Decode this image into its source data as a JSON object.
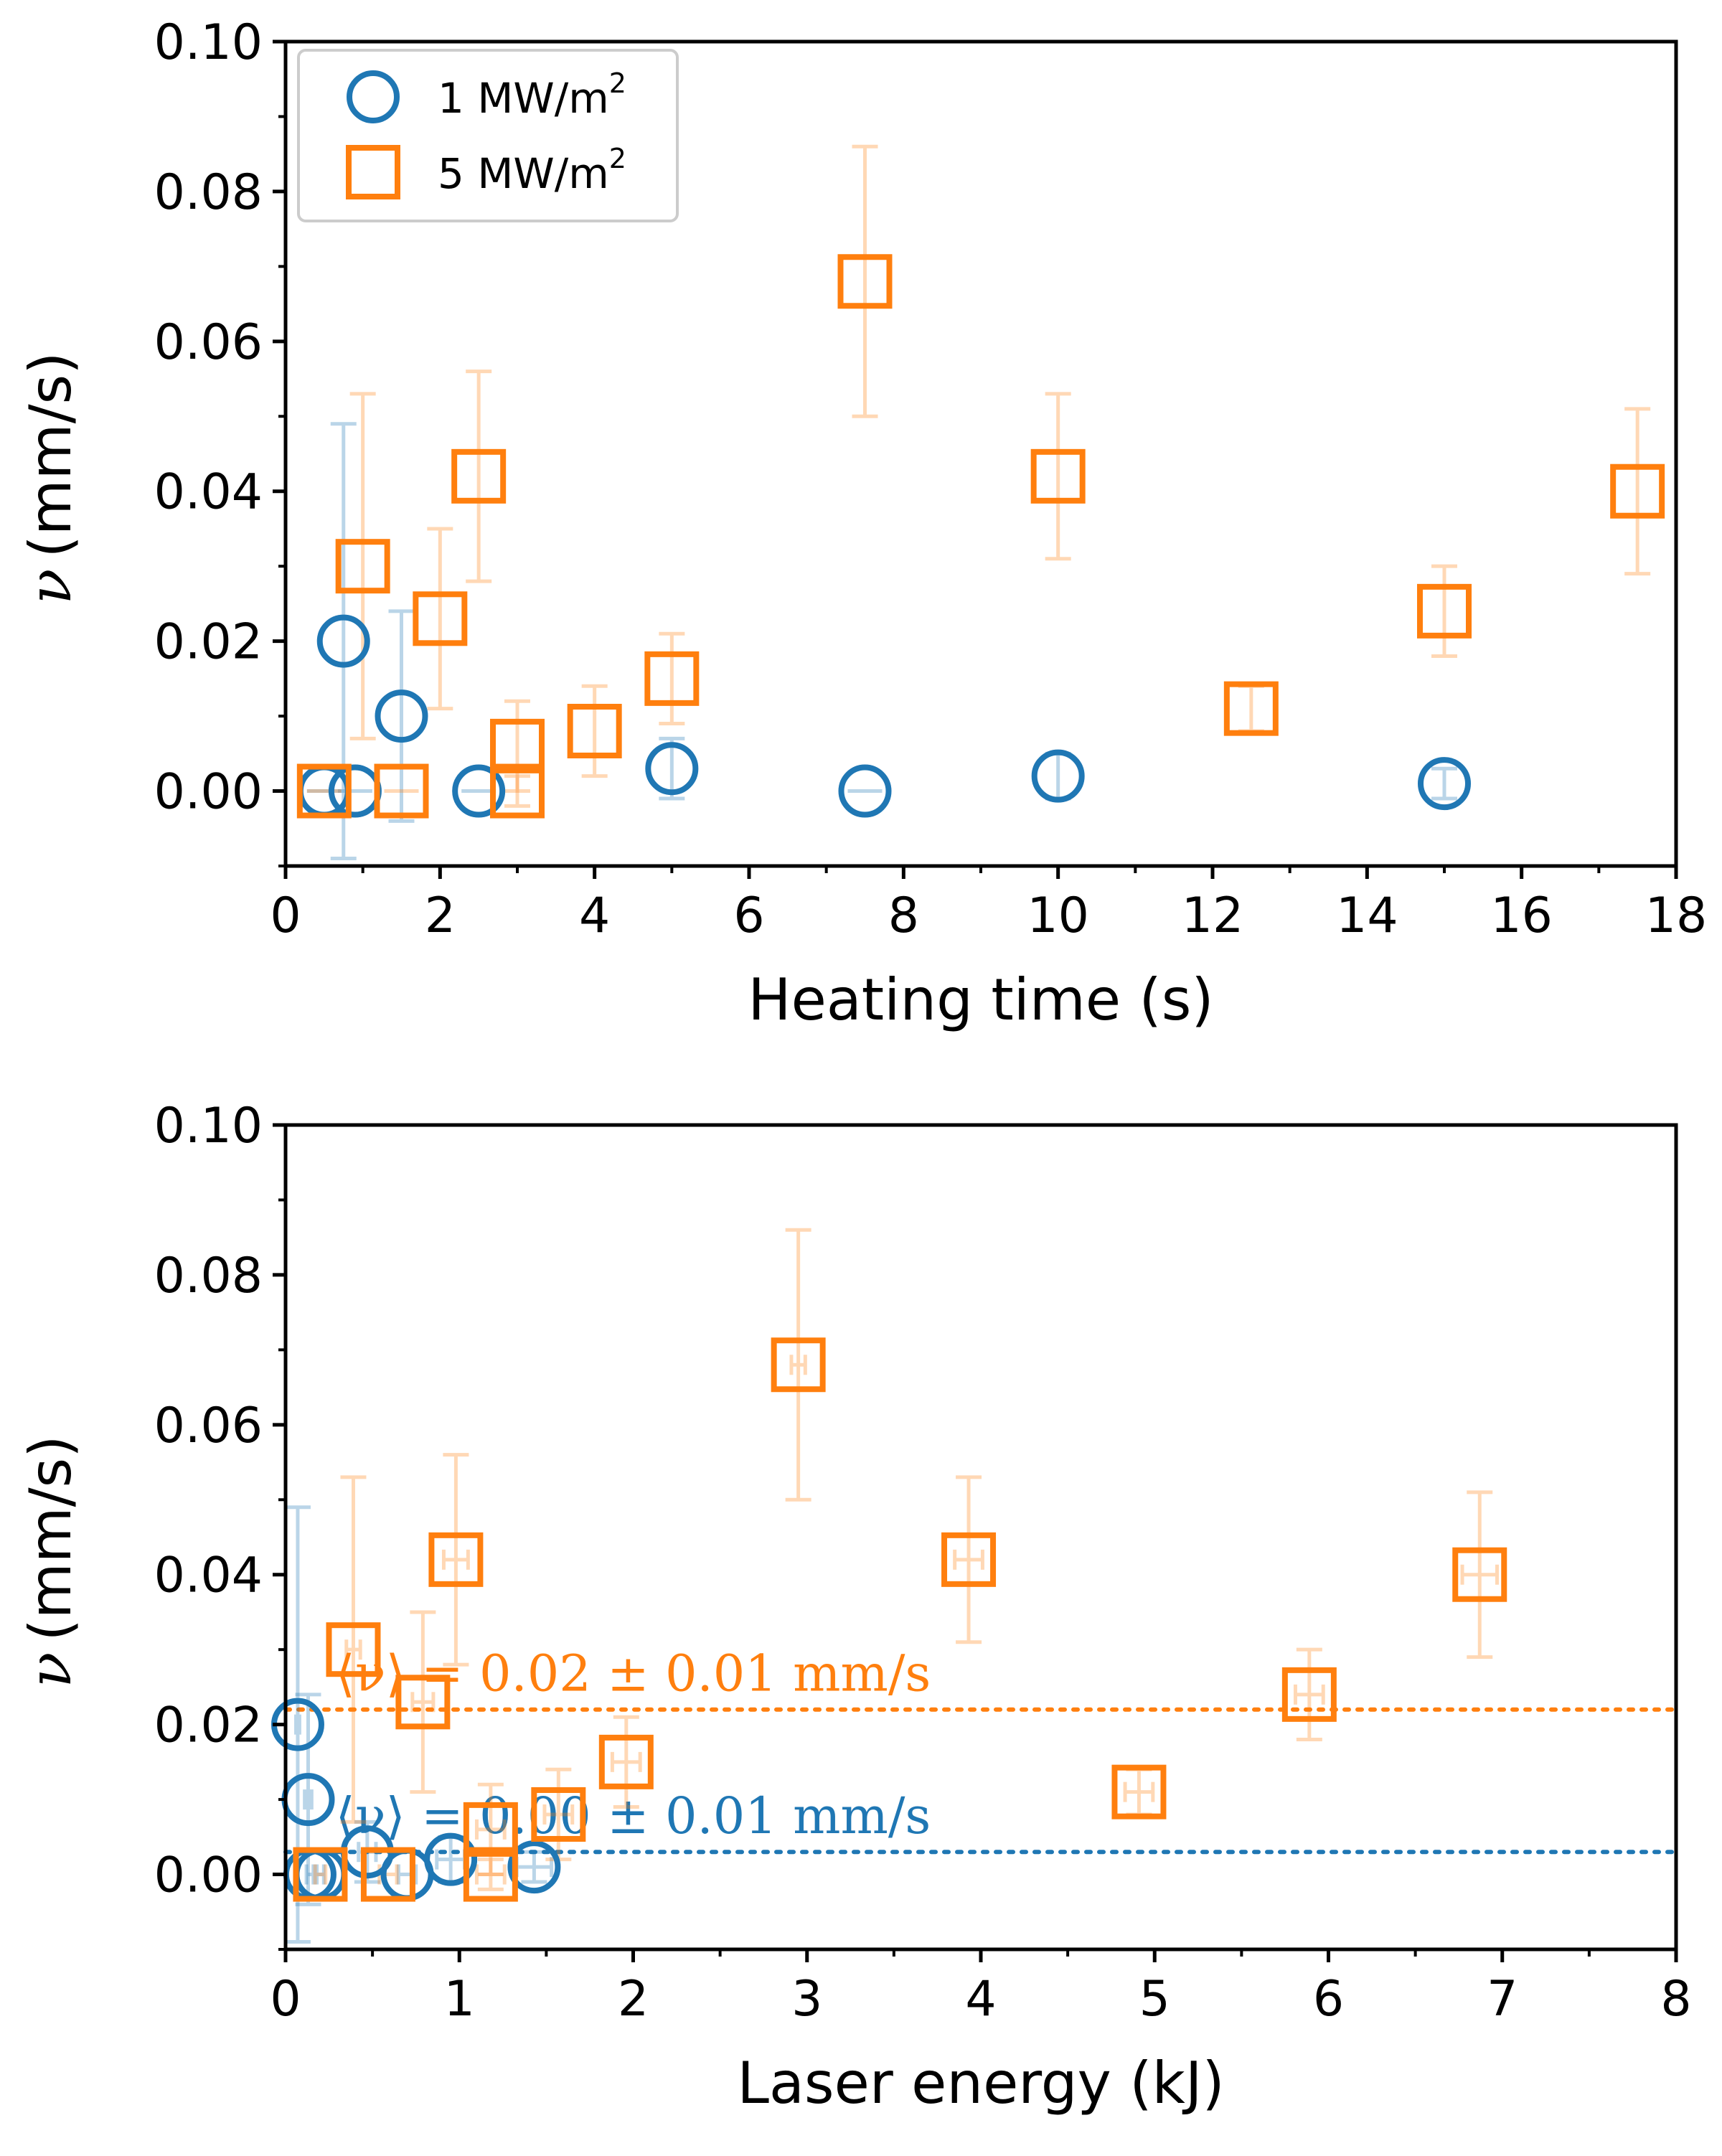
{
  "colors": {
    "series_1": "#1f77b4",
    "series_5": "#ff7f0e",
    "axis": "#000000"
  },
  "legend": {
    "entries": [
      {
        "label": "1 MW/m",
        "sup": "2",
        "marker": "circle",
        "color": "#1f77b4"
      },
      {
        "label": "5 MW/m",
        "sup": "2",
        "marker": "square",
        "color": "#ff7f0e"
      }
    ],
    "placement": "top-left"
  },
  "chart_data": [
    {
      "type": "scatter",
      "title": "",
      "xlabel": "Heating time (s)",
      "ylabel_symbol": "ν",
      "ylabel_unit": "(mm/s)",
      "xlim": [
        0,
        18
      ],
      "ylim": [
        -0.01,
        0.1
      ],
      "xticks": [
        0,
        2,
        4,
        6,
        8,
        10,
        12,
        14,
        16,
        18
      ],
      "xtick_labels": [
        "0",
        "2",
        "4",
        "6",
        "8",
        "10",
        "12",
        "14",
        "16",
        "18"
      ],
      "yticks": [
        0.0,
        0.02,
        0.04,
        0.06,
        0.08,
        0.1
      ],
      "ytick_labels": [
        "0.00",
        "0.02",
        "0.04",
        "0.06",
        "0.08",
        "0.10"
      ],
      "grid": false,
      "series": [
        {
          "name": "1 MW/m2",
          "marker": "circle",
          "color": "#1f77b4",
          "points": [
            {
              "x": 0.5,
              "y": 0.0,
              "yerr": 0.0
            },
            {
              "x": 0.75,
              "y": 0.02,
              "yerr": 0.029
            },
            {
              "x": 0.9,
              "y": 0.0,
              "yerr": 0.0
            },
            {
              "x": 1.5,
              "y": 0.01,
              "yerr": 0.014
            },
            {
              "x": 2.5,
              "y": 0.0,
              "yerr": 0.0
            },
            {
              "x": 5.0,
              "y": 0.003,
              "yerr": 0.004
            },
            {
              "x": 7.5,
              "y": 0.0,
              "yerr": 0.0
            },
            {
              "x": 10.0,
              "y": 0.002,
              "yerr": 0.003
            },
            {
              "x": 15.0,
              "y": 0.001,
              "yerr": 0.002
            }
          ]
        },
        {
          "name": "5 MW/m2",
          "marker": "square",
          "color": "#ff7f0e",
          "points": [
            {
              "x": 0.5,
              "y": 0.0,
              "yerr": 0.0
            },
            {
              "x": 1.0,
              "y": 0.03,
              "yerr": 0.023
            },
            {
              "x": 1.5,
              "y": 0.0,
              "yerr": 0.0
            },
            {
              "x": 2.0,
              "y": 0.023,
              "yerr": 0.012
            },
            {
              "x": 2.5,
              "y": 0.042,
              "yerr": 0.014
            },
            {
              "x": 3.0,
              "y": 0.006,
              "yerr": 0.006
            },
            {
              "x": 3.0,
              "y": 0.0,
              "yerr": 0.002
            },
            {
              "x": 4.0,
              "y": 0.008,
              "yerr": 0.006
            },
            {
              "x": 5.0,
              "y": 0.015,
              "yerr": 0.006
            },
            {
              "x": 7.5,
              "y": 0.068,
              "yerr": 0.018
            },
            {
              "x": 10.0,
              "y": 0.042,
              "yerr": 0.011
            },
            {
              "x": 12.5,
              "y": 0.011,
              "yerr": 0.003
            },
            {
              "x": 15.0,
              "y": 0.024,
              "yerr": 0.006
            },
            {
              "x": 17.5,
              "y": 0.04,
              "yerr": 0.011
            }
          ]
        }
      ]
    },
    {
      "type": "scatter",
      "title": "",
      "xlabel": "Laser energy (kJ)",
      "ylabel_symbol": "ν",
      "ylabel_unit": "(mm/s)",
      "xlim": [
        0,
        8
      ],
      "ylim": [
        -0.01,
        0.1
      ],
      "xticks": [
        0,
        1,
        2,
        3,
        4,
        5,
        6,
        7,
        8
      ],
      "xtick_labels": [
        "0",
        "1",
        "2",
        "3",
        "4",
        "5",
        "6",
        "7",
        "8"
      ],
      "yticks": [
        0.0,
        0.02,
        0.04,
        0.06,
        0.08,
        0.1
      ],
      "ytick_labels": [
        "0.00",
        "0.02",
        "0.04",
        "0.06",
        "0.08",
        "0.10"
      ],
      "grid": false,
      "series": [
        {
          "name": "1 MW/m2",
          "marker": "circle",
          "color": "#1f77b4",
          "points": [
            {
              "x": 0.07,
              "y": 0.02,
              "xerr": 0.01,
              "yerr": 0.029
            },
            {
              "x": 0.13,
              "y": 0.01,
              "xerr": 0.02,
              "yerr": 0.014
            },
            {
              "x": 0.14,
              "y": 0.0,
              "xerr": 0.02,
              "yerr": 0.0
            },
            {
              "x": 0.2,
              "y": 0.0,
              "xerr": 0.02,
              "yerr": 0.0
            },
            {
              "x": 0.47,
              "y": 0.003,
              "xerr": 0.05,
              "yerr": 0.004
            },
            {
              "x": 0.7,
              "y": 0.0,
              "xerr": 0.05,
              "yerr": 0.0
            },
            {
              "x": 0.95,
              "y": 0.002,
              "xerr": 0.08,
              "yerr": 0.003
            },
            {
              "x": 1.43,
              "y": 0.001,
              "xerr": 0.1,
              "yerr": 0.002
            }
          ]
        },
        {
          "name": "5 MW/m2",
          "marker": "square",
          "color": "#ff7f0e",
          "points": [
            {
              "x": 0.2,
              "y": 0.0,
              "xerr": 0.03,
              "yerr": 0.0
            },
            {
              "x": 0.39,
              "y": 0.03,
              "xerr": 0.04,
              "yerr": 0.023
            },
            {
              "x": 0.59,
              "y": 0.0,
              "xerr": 0.05,
              "yerr": 0.0
            },
            {
              "x": 0.79,
              "y": 0.023,
              "xerr": 0.06,
              "yerr": 0.012
            },
            {
              "x": 0.98,
              "y": 0.042,
              "xerr": 0.07,
              "yerr": 0.014
            },
            {
              "x": 1.18,
              "y": 0.006,
              "xerr": 0.08,
              "yerr": 0.006
            },
            {
              "x": 1.18,
              "y": 0.0,
              "xerr": 0.08,
              "yerr": 0.002
            },
            {
              "x": 1.57,
              "y": 0.008,
              "xerr": 0.08,
              "yerr": 0.006
            },
            {
              "x": 1.96,
              "y": 0.015,
              "xerr": 0.08,
              "yerr": 0.006
            },
            {
              "x": 2.95,
              "y": 0.068,
              "xerr": 0.04,
              "yerr": 0.018
            },
            {
              "x": 3.93,
              "y": 0.042,
              "xerr": 0.08,
              "yerr": 0.011
            },
            {
              "x": 4.91,
              "y": 0.011,
              "xerr": 0.08,
              "yerr": 0.003
            },
            {
              "x": 5.89,
              "y": 0.024,
              "xerr": 0.08,
              "yerr": 0.006
            },
            {
              "x": 6.87,
              "y": 0.04,
              "xerr": 0.1,
              "yerr": 0.011
            }
          ]
        }
      ],
      "reference_lines": [
        {
          "y": 0.022,
          "color": "#ff7f0e",
          "style": "dotted",
          "label": "⟨ν⟩ = 0.02 ± 0.01 mm/s"
        },
        {
          "y": 0.003,
          "color": "#1f77b4",
          "style": "dotted",
          "label": "⟨ν⟩ = 0.00 ± 0.01 mm/s"
        }
      ]
    }
  ]
}
